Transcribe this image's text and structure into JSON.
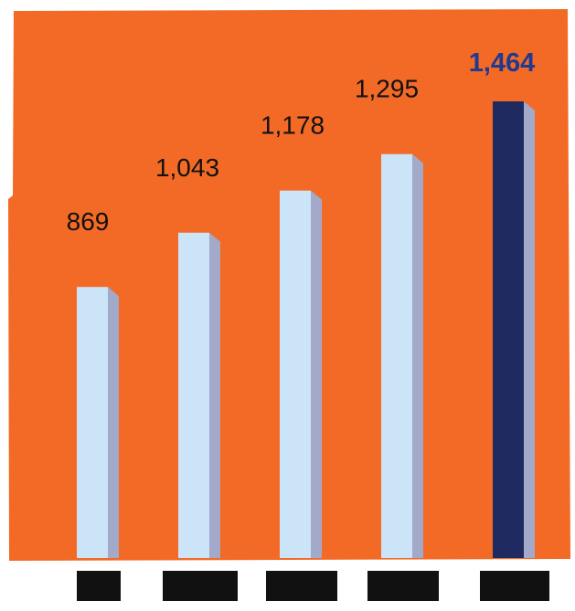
{
  "colors": {
    "background": "#f26a26",
    "bar": "#cce4f7",
    "bar_side": "#a3a9c8",
    "highlight_bar": "#1f2a60",
    "highlight_side": "#a3a9c8",
    "value_label": "#111111",
    "highlight_label": "#1f3a8f",
    "category_block": "#111111"
  },
  "chart_data": {
    "type": "bar",
    "title": "",
    "xlabel": "",
    "ylabel": "",
    "categories": [
      "",
      "",
      "",
      "",
      ""
    ],
    "values": [
      869,
      1043,
      1178,
      1295,
      1464
    ],
    "value_labels": [
      "869",
      "1,043",
      "1,178",
      "1,295",
      "1,464"
    ],
    "highlight_index": 4,
    "ylim": [
      0,
      1600
    ],
    "grid": false,
    "legend": "none",
    "category_labels_note": "category labels are blacked-out blocks (unreadable)"
  }
}
